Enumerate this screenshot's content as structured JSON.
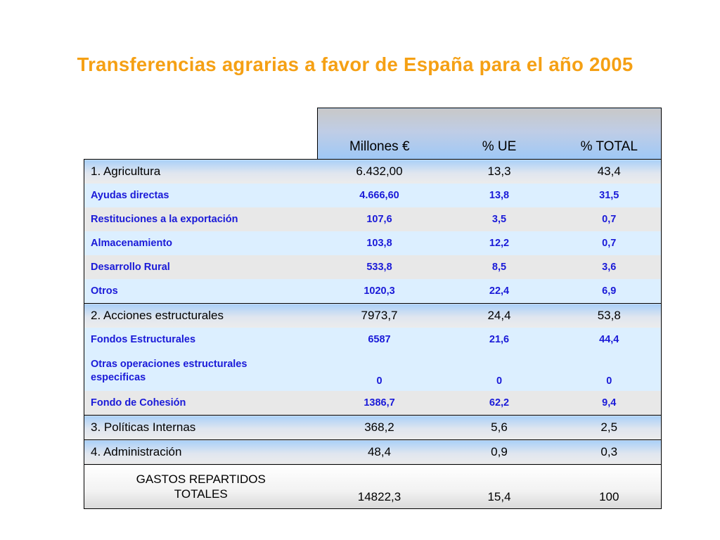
{
  "title": "Transferencias agrarias a favor de España para el año 2005",
  "table": {
    "headers": [
      "Millones €",
      "% UE",
      "% TOTAL"
    ],
    "sections": [
      {
        "label": "1. Agricultura",
        "values": [
          "6.432,00",
          "13,3",
          "43,4"
        ],
        "items": [
          {
            "label": "Ayudas directas",
            "values": [
              "4.666,60",
              "13,8",
              "31,5"
            ]
          },
          {
            "label": "Restituciones a la exportación",
            "values": [
              "107,6",
              "3,5",
              "0,7"
            ]
          },
          {
            "label": "Almacenamiento",
            "values": [
              "103,8",
              "12,2",
              "0,7"
            ]
          },
          {
            "label": "Desarrollo Rural",
            "values": [
              "533,8",
              "8,5",
              "3,6"
            ]
          },
          {
            "label": "Otros",
            "values": [
              "1020,3",
              "22,4",
              "6,9"
            ]
          }
        ]
      },
      {
        "label": "2.  Acciones estructurales",
        "values": [
          "7973,7",
          "24,4",
          "53,8"
        ],
        "items": [
          {
            "label": "Fondos Estructurales",
            "values": [
              "6587",
              "21,6",
              "44,4"
            ]
          },
          {
            "label_line1": "Otras operaciones estructurales",
            "label_line2": "especificas",
            "values": [
              "0",
              "0",
              "0"
            ]
          },
          {
            "label": "Fondo de Cohesión",
            "values": [
              "1386,7",
              "62,2",
              "9,4"
            ]
          }
        ]
      },
      {
        "label": "3. Políticas Internas",
        "values": [
          "368,2",
          "5,6",
          "2,5"
        ],
        "items": []
      },
      {
        "label": "4. Administración",
        "values": [
          "48,4",
          "0,9",
          "0,3"
        ],
        "items": []
      }
    ],
    "total": {
      "label_line1": "GASTOS REPARTIDOS",
      "label_line2": "TOTALES",
      "values": [
        "14822,3",
        "15,4",
        "100"
      ]
    }
  }
}
